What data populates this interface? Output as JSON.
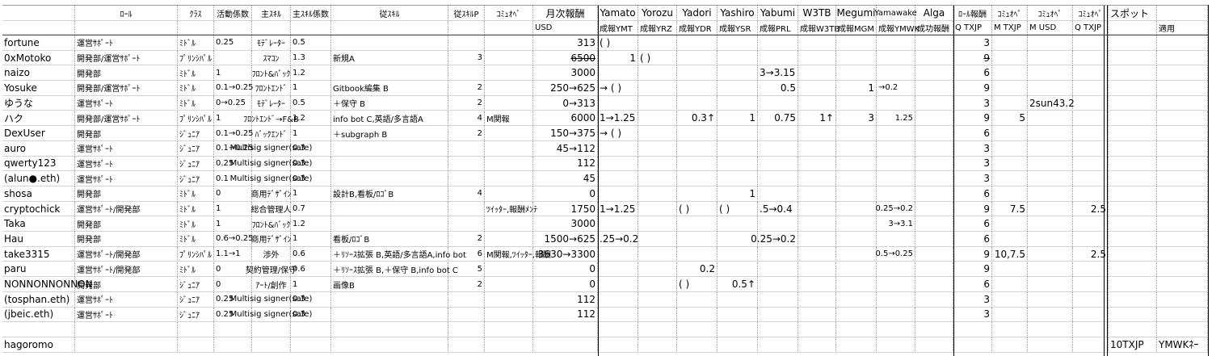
{
  "header": {
    "row1": [
      null,
      "ﾛｰﾙ",
      "ｸﾗｽ",
      "活動係数",
      "主ｽｷﾙ",
      "主ｽｷﾙ係数",
      "従ｽｷﾙ",
      "従ｽｷﾙP",
      "ｺﾐｭｵﾍﾟ",
      "月次報酬",
      "Yamato",
      "Yorozu",
      "Yadori",
      "Yashiro",
      "Yabumi",
      "W3TB",
      "Megumi",
      "Yamawake",
      "Alga",
      "ﾛｰﾙ報酬",
      "ｺﾐｭｵﾍﾟ",
      "ｺﾐｭｵﾍﾟ",
      "ｺﾐｭｵﾍﾟ",
      "スポット",
      null
    ],
    "row2": [
      null,
      null,
      null,
      null,
      null,
      null,
      null,
      null,
      null,
      "USD",
      "成報YMT",
      "成報YRZ",
      "成報YDR",
      "成報YSR",
      "成報PRL",
      "成報W3TB",
      "成報MGM",
      "成報YMWK",
      "成功報酬",
      "Q TXJP",
      "M TXJP",
      "M USD",
      "Q TXJP",
      null,
      "適用"
    ]
  },
  "table": {
    "rows": [
      [
        "fortune",
        "運営ｻﾎﾟｰﾄ",
        "ﾐﾄﾞﾙ",
        "0.25",
        "ﾓﾃﾞﾚｰﾀｰ",
        "0.5",
        null,
        null,
        null,
        "313",
        "(    )",
        null,
        null,
        null,
        null,
        null,
        null,
        null,
        null,
        "3",
        null,
        null,
        null,
        null,
        null
      ],
      [
        "0xMotoko",
        "開発部/運営ｻﾎﾟｰﾄ",
        "ﾌﾟﾘﾝｼﾊﾟﾙ",
        null,
        "ｽﾏｺﾝ",
        "1.3",
        "新規A",
        "3",
        null,
        "6500",
        "1",
        "(    )",
        null,
        null,
        null,
        null,
        null,
        null,
        null,
        "9",
        null,
        null,
        null,
        null,
        null
      ],
      [
        "naizo",
        "開発部",
        "ﾐﾄﾞﾙ",
        "1",
        "ﾌﾛﾝﾄ&ﾊﾞｯｸ",
        "1.2",
        null,
        null,
        null,
        "3000",
        null,
        null,
        null,
        null,
        "3→3.15",
        null,
        null,
        null,
        null,
        "6",
        null,
        null,
        null,
        null,
        null
      ],
      [
        "Yosuke",
        "開発部/運営ｻﾎﾟｰﾄ",
        "ﾐﾄﾞﾙ",
        "0.1→0.25",
        "ﾌﾛﾝﾄｴﾝﾄﾞ",
        "1",
        "Gitbook編集 B",
        "2",
        null,
        "250→625",
        "→ (    )",
        null,
        null,
        null,
        "0.5",
        null,
        "1",
        "→0.2",
        null,
        "9",
        null,
        null,
        null,
        null,
        null
      ],
      [
        "ゆうな",
        "運営ｻﾎﾟｰﾄ",
        "ﾐﾄﾞﾙ",
        "0→0.25",
        "ﾓﾃﾞﾚｰﾀｰ",
        "0.5",
        "＋保守 B",
        "2",
        null,
        "0→313",
        null,
        null,
        null,
        null,
        null,
        null,
        null,
        null,
        null,
        "3",
        null,
        "2sun43.2",
        null,
        null,
        null
      ],
      [
        "ハク",
        "開発部/運営ｻﾎﾟｰﾄ",
        "ﾌﾟﾘﾝｼﾊﾟﾙ",
        "1",
        "ﾌﾛﾝﾄｴﾝﾄﾞ→F&B",
        "1.2",
        "info bot C,英語/多言語A",
        "4",
        "M関報",
        "6000",
        "1→1.25",
        null,
        "0.3↑",
        "1",
        "0.75",
        "1↑",
        "3",
        "1.25",
        null,
        "9",
        "5",
        null,
        null,
        null,
        null
      ],
      [
        "DexUser",
        "開発部",
        "ｼﾞｭﾆｱ",
        "0.1→0.25",
        "ﾊﾞｯｸｴﾝﾄﾞ",
        "1",
        "＋subgraph B",
        "2",
        null,
        "150→375",
        "→ (    )",
        null,
        null,
        null,
        null,
        null,
        null,
        null,
        null,
        "6",
        null,
        null,
        null,
        null,
        null
      ],
      [
        "auro",
        "運営ｻﾎﾟｰﾄ",
        "ｼﾞｭﾆｱ",
        "0.1→0.25",
        "Multisig signer(safe)",
        "0.3",
        null,
        null,
        null,
        "45→112",
        null,
        null,
        null,
        null,
        null,
        null,
        null,
        null,
        null,
        "3",
        null,
        null,
        null,
        null,
        null
      ],
      [
        "qwerty123",
        "運営ｻﾎﾟｰﾄ",
        "ｼﾞｭﾆｱ",
        "0.25",
        "Multisig signer(safe)",
        "0.3",
        null,
        null,
        null,
        "112",
        null,
        null,
        null,
        null,
        null,
        null,
        null,
        null,
        null,
        "3",
        null,
        null,
        null,
        null,
        null
      ],
      [
        "(alun●.eth)",
        "運営ｻﾎﾟｰﾄ",
        "ｼﾞｭﾆｱ",
        "0.1",
        "Multisig signer(safe)",
        "0.3",
        null,
        null,
        null,
        "45",
        null,
        null,
        null,
        null,
        null,
        null,
        null,
        null,
        null,
        "3",
        null,
        null,
        null,
        null,
        null
      ],
      [
        "shosa",
        "開発部",
        "ﾐﾄﾞﾙ",
        "0",
        "商用ﾃﾞｻﾞｲﾝ",
        "1",
        "設計B,看板/ﾛｺﾞB",
        "4",
        null,
        "0",
        null,
        null,
        null,
        "1",
        null,
        null,
        null,
        null,
        null,
        "6",
        null,
        null,
        null,
        null,
        null
      ],
      [
        "cryptochick",
        "運営ｻﾎﾟｰﾄ/開発部",
        "ﾐﾄﾞﾙ",
        "1",
        "総合管理人",
        "0.7",
        null,
        null,
        "ﾂｲｯﾀｰ,報酬ﾒﾝﾃ",
        "1750",
        "1→1.25",
        null,
        "(    )",
        "(    )",
        ".5→0.4",
        null,
        null,
        "0.25→0.2",
        null,
        "9",
        "7.5",
        null,
        "2.5",
        null,
        null
      ],
      [
        "Taka",
        "開発部",
        "ﾐﾄﾞﾙ",
        "1",
        "ﾌﾛﾝﾄ&ﾊﾞｯｸ",
        "1.2",
        null,
        null,
        null,
        "3000",
        null,
        null,
        null,
        null,
        null,
        null,
        null,
        "3→3.1",
        null,
        "6",
        null,
        null,
        null,
        null,
        null
      ],
      [
        "Hau",
        "開発部",
        "ﾐﾄﾞﾙ",
        "0.6→0.25",
        "商用ﾃﾞｻﾞｲﾝ",
        "1",
        "看板/ﾛｺﾞB",
        "2",
        null,
        "1500→625",
        ".25→0.2",
        null,
        null,
        null,
        "0.25→0.2",
        null,
        null,
        null,
        null,
        "6",
        null,
        null,
        null,
        null,
        null
      ],
      [
        "take3315",
        "運営ｻﾎﾟｰﾄ/開発部",
        "ﾌﾟﾘﾝｼﾊﾟﾙ",
        "1.1→1",
        "渉外",
        "0.6",
        "＋ﾘｿｰｽ拡張 B,英語/多言語A,info bot",
        "6",
        "M関報,ﾂｲｯﾀｰ,報酬",
        "3630→3300",
        null,
        null,
        null,
        null,
        null,
        null,
        null,
        "0.5→0.25",
        null,
        "9",
        "10,7.5",
        null,
        "2.5",
        null,
        null
      ],
      [
        "paru",
        "運営ｻﾎﾟｰﾄ/開発部",
        "ﾐﾄﾞﾙ",
        "0",
        "契約管理/保守",
        "0.6",
        "＋ﾘｿｰｽ拡張 B,＋保守 B,info bot C",
        "5",
        null,
        "0",
        null,
        null,
        "0.2",
        null,
        null,
        null,
        null,
        null,
        null,
        "9",
        null,
        null,
        null,
        null,
        null
      ],
      [
        "NONNONNONNON",
        "開発部",
        "ｼﾞｭﾆｱ",
        "0",
        "ｱｰﾄ/創作",
        "1",
        "画像B",
        "2",
        null,
        "0",
        null,
        null,
        "(    )",
        "0.5↑",
        null,
        null,
        null,
        null,
        null,
        "6",
        null,
        null,
        null,
        null,
        null
      ],
      [
        "(tosphan.eth)",
        "運営ｻﾎﾟｰﾄ",
        "ｼﾞｭﾆｱ",
        "0.25",
        "Multisig signer(safe)",
        "0.3",
        null,
        null,
        null,
        "112",
        null,
        null,
        null,
        null,
        null,
        null,
        null,
        null,
        null,
        "3",
        null,
        null,
        null,
        null,
        null
      ],
      [
        "(jbeic.eth)",
        "運営ｻﾎﾟｰﾄ",
        "ｼﾞｭﾆｱ",
        "0.25",
        "Multisig signer(safe)",
        "0.3",
        null,
        null,
        null,
        "112",
        null,
        null,
        null,
        null,
        null,
        null,
        null,
        null,
        null,
        "3",
        null,
        null,
        null,
        null,
        null
      ],
      [
        null,
        null,
        null,
        null,
        null,
        null,
        null,
        null,
        null,
        null,
        null,
        null,
        null,
        null,
        null,
        null,
        null,
        null,
        null,
        null,
        null,
        null,
        null,
        null,
        null
      ],
      [
        "hagoromo",
        null,
        null,
        null,
        null,
        null,
        null,
        null,
        null,
        null,
        null,
        null,
        null,
        null,
        null,
        null,
        null,
        null,
        null,
        null,
        null,
        null,
        null,
        "10TXJP",
        "YMWKﾈｰ"
      ]
    ]
  }
}
